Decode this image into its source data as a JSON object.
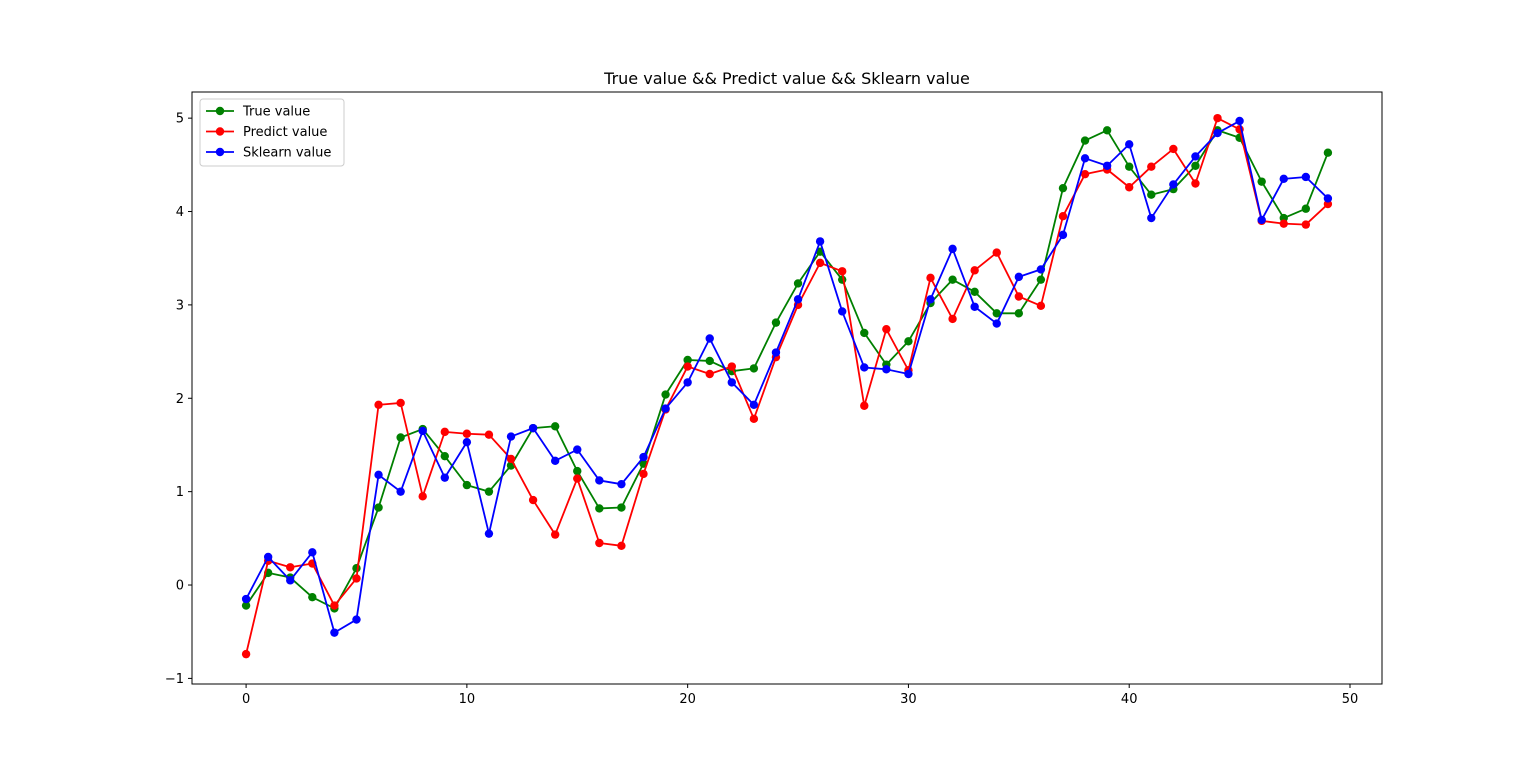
{
  "chart_data": {
    "type": "line",
    "title": "True value && Predict value && Sklearn value",
    "xlabel": "",
    "ylabel": "",
    "xlim": [
      -2.45,
      51.45
    ],
    "ylim": [
      -1.06,
      5.28
    ],
    "x_ticks": [
      0,
      10,
      20,
      30,
      40,
      50
    ],
    "x_tick_labels": [
      "0",
      "10",
      "20",
      "30",
      "40",
      "50"
    ],
    "y_ticks": [
      -1,
      0,
      1,
      2,
      3,
      4,
      5
    ],
    "y_tick_labels": [
      "−1",
      "0",
      "1",
      "2",
      "3",
      "4",
      "5"
    ],
    "grid": false,
    "legend_position": "top-left",
    "x": [
      0,
      1,
      2,
      3,
      4,
      5,
      6,
      7,
      8,
      9,
      10,
      11,
      12,
      13,
      14,
      15,
      16,
      17,
      18,
      19,
      20,
      21,
      22,
      23,
      24,
      25,
      26,
      27,
      28,
      29,
      30,
      31,
      32,
      33,
      34,
      35,
      36,
      37,
      38,
      39,
      40,
      41,
      42,
      43,
      44,
      45,
      46,
      47,
      48,
      49
    ],
    "series": [
      {
        "name": "True value",
        "color": "#008000",
        "values": [
          -0.22,
          0.13,
          0.08,
          -0.13,
          -0.25,
          0.18,
          0.83,
          1.58,
          1.67,
          1.38,
          1.07,
          1.0,
          1.28,
          1.68,
          1.7,
          1.22,
          0.82,
          0.83,
          1.3,
          2.04,
          2.41,
          2.4,
          2.29,
          2.32,
          2.81,
          3.23,
          3.57,
          3.27,
          2.7,
          2.36,
          2.61,
          3.02,
          3.27,
          3.14,
          2.91,
          2.91,
          3.27,
          4.25,
          4.76,
          4.87,
          4.48,
          4.18,
          4.24,
          4.49,
          4.87,
          4.79,
          4.32,
          3.93,
          4.03,
          4.63
        ]
      },
      {
        "name": "Predict value",
        "color": "#ff0000",
        "values": [
          -0.74,
          0.26,
          0.19,
          0.23,
          -0.22,
          0.07,
          1.93,
          1.95,
          0.95,
          1.64,
          1.62,
          1.61,
          1.35,
          0.91,
          0.54,
          1.14,
          0.45,
          0.42,
          1.19,
          1.88,
          2.34,
          2.26,
          2.34,
          1.78,
          2.44,
          3.0,
          3.45,
          3.36,
          1.92,
          2.74,
          2.3,
          3.29,
          2.85,
          3.37,
          3.56,
          3.09,
          2.99,
          3.95,
          4.4,
          4.45,
          4.26,
          4.48,
          4.67,
          4.3,
          5.0,
          4.88,
          3.9,
          3.87,
          3.86,
          4.08
        ]
      },
      {
        "name": "Sklearn value",
        "color": "#0000ff",
        "values": [
          -0.15,
          0.3,
          0.05,
          0.35,
          -0.51,
          -0.37,
          1.18,
          1.0,
          1.65,
          1.15,
          1.53,
          0.55,
          1.59,
          1.68,
          1.33,
          1.45,
          1.12,
          1.08,
          1.37,
          1.89,
          2.17,
          2.64,
          2.17,
          1.93,
          2.49,
          3.06,
          3.68,
          2.93,
          2.33,
          2.31,
          2.26,
          3.06,
          3.6,
          2.98,
          2.8,
          3.3,
          3.38,
          3.75,
          4.57,
          4.49,
          4.72,
          3.93,
          4.29,
          4.59,
          4.84,
          4.97,
          3.91,
          4.35,
          4.37,
          4.14
        ]
      }
    ]
  }
}
